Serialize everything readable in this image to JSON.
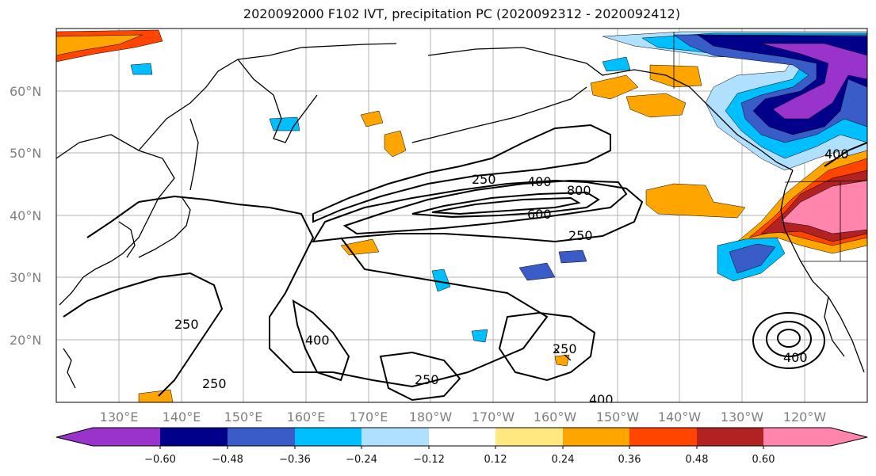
{
  "title": "2020092000 F102 IVT, precipitation PC (2020092312 - 2020092412)",
  "map": {
    "lat_labels": [
      "60°N",
      "50°N",
      "40°N",
      "30°N",
      "20°N"
    ],
    "lon_labels": [
      "130°E",
      "140°E",
      "150°E",
      "160°E",
      "170°E",
      "180°W",
      "170°W",
      "160°W",
      "150°W",
      "140°W",
      "130°W",
      "120°W"
    ],
    "contour_labels": [
      "250",
      "400",
      "800",
      "600",
      "250",
      "250",
      "400",
      "250",
      "250",
      "400",
      "400",
      "400"
    ]
  },
  "colorbar": {
    "colors": [
      "#9933cc",
      "#00008b",
      "#3a5cc9",
      "#00bfff",
      "#b0e0ff",
      "#ffffff",
      "#ffe880",
      "#ffa500",
      "#ff4500",
      "#b22222",
      "#ff85ad"
    ],
    "tick_labels": [
      "−0.60",
      "−0.48",
      "−0.36",
      "−0.24",
      "−0.12",
      "0.12",
      "0.24",
      "0.36",
      "0.48",
      "0.60"
    ]
  }
}
